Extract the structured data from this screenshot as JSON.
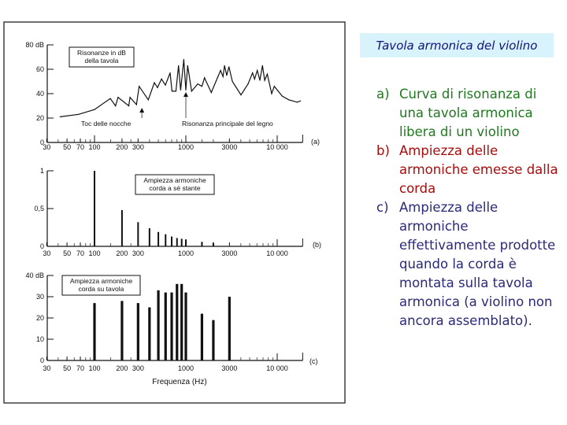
{
  "slide": {
    "title": "Tavola armonica del violino",
    "title_bg": "#d8f3fb",
    "items": [
      {
        "marker": "a)",
        "text": "Curva di risonanza di una tavola armonica libera di un violino",
        "color": "#1f7a1f"
      },
      {
        "marker": "b)",
        "text": "Ampiezza delle armoniche emesse dalla corda",
        "color": "#a80d0d"
      },
      {
        "marker": "c)",
        "text": "Ampiezza delle armoniche effettivamente prodotte quando la corda è montata sulla tavola armonica (a violino non ancora assemblato).",
        "color": "#2a2a78"
      }
    ]
  },
  "x_tick_labels": [
    "30",
    "50",
    "70",
    "100",
    "200",
    "300",
    "1000",
    "3000",
    "10 000"
  ],
  "x_tick_values": [
    30,
    50,
    70,
    100,
    200,
    300,
    1000,
    3000,
    10000
  ],
  "xlabel": "Frequenza (Hz)",
  "chart_data": [
    {
      "type": "line",
      "panel_label": "(a)",
      "legend": "Risonanze in dB della tavola",
      "x_scale": "log",
      "xlim": [
        30,
        19000
      ],
      "ylim": [
        0,
        80
      ],
      "y_ticks": [
        0,
        20,
        40,
        60,
        80
      ],
      "y_tick_labels": [
        "0",
        "20",
        "40",
        "60",
        "80 dB"
      ],
      "annotations": [
        {
          "text": "Toc delle nocche",
          "x": 330,
          "y": 30
        },
        {
          "text": "Risonanza principale del legno",
          "x": 1000,
          "y": 43
        }
      ],
      "x": [
        42,
        67,
        100,
        149,
        170,
        181,
        237,
        245,
        288,
        308,
        388,
        452,
        489,
        541,
        597,
        673,
        705,
        778,
        832,
        877,
        949,
        1000,
        1047,
        1157,
        1350,
        1500,
        1600,
        1900,
        2400,
        2550,
        2650,
        2800,
        2960,
        3230,
        4011,
        4800,
        5370,
        5662,
        6050,
        6460,
        6905,
        7300,
        7780,
        8710,
        9300,
        11350,
        13370,
        16500,
        18000
      ],
      "y": [
        21,
        23,
        27,
        36,
        30,
        37,
        30,
        37,
        31,
        46,
        35,
        49,
        45,
        52,
        47,
        57,
        42,
        42,
        63,
        43,
        68,
        43,
        63,
        42,
        48,
        46,
        53,
        41,
        59,
        54,
        63,
        55,
        62,
        50,
        39,
        48,
        57,
        52,
        59,
        51,
        63,
        51,
        56,
        40,
        46,
        38,
        35,
        33,
        34
      ]
    },
    {
      "type": "bar",
      "panel_label": "(b)",
      "legend": "Ampiezza armoniche corda a sé stante",
      "x_scale": "log",
      "xlim": [
        30,
        19000
      ],
      "ylim": [
        0,
        1
      ],
      "y_ticks": [
        0,
        0.5,
        1
      ],
      "y_tick_labels": [
        "0",
        "0,5",
        "1"
      ],
      "x": [
        100,
        200,
        300,
        400,
        500,
        600,
        700,
        800,
        900,
        1000,
        1500,
        2000
      ],
      "y": [
        1,
        0.48,
        0.32,
        0.24,
        0.19,
        0.16,
        0.13,
        0.11,
        0.1,
        0.09,
        0.06,
        0.05
      ]
    },
    {
      "type": "bar",
      "panel_label": "(c)",
      "legend": "Ampiezza armoniche corda su tavola",
      "x_scale": "log",
      "xlim": [
        30,
        19000
      ],
      "ylim": [
        0,
        40
      ],
      "y_ticks": [
        0,
        10,
        20,
        30,
        40
      ],
      "y_tick_labels": [
        "0",
        "10",
        "20",
        "30",
        "40 dB"
      ],
      "x": [
        100,
        200,
        300,
        400,
        500,
        600,
        700,
        800,
        900,
        1000,
        1500,
        2000,
        3000
      ],
      "y": [
        27,
        28,
        27,
        25,
        33,
        32,
        32,
        36,
        36,
        32,
        22,
        19,
        30
      ]
    }
  ]
}
